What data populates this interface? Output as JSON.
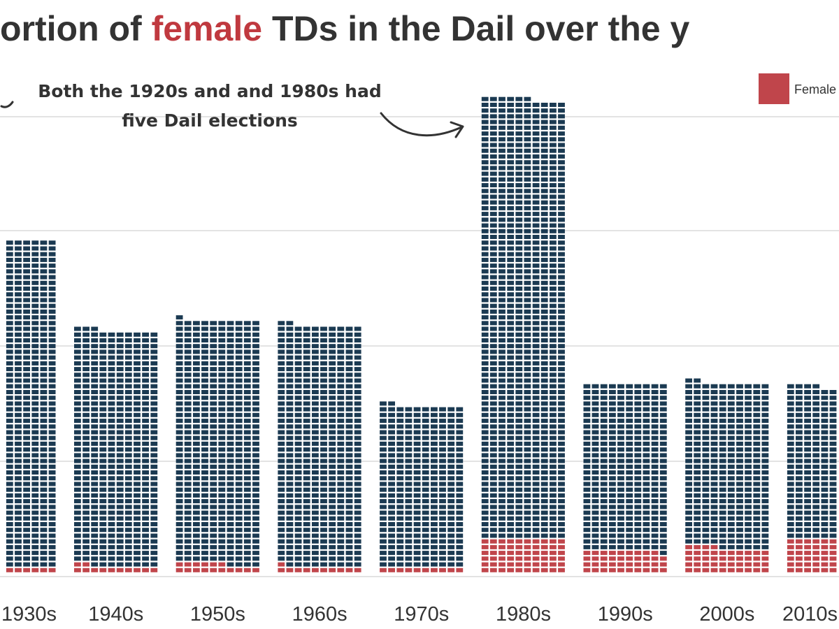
{
  "title": {
    "part1": "ortion of ",
    "highlight": "female",
    "part2": " TDs in the Dail over the y"
  },
  "annotation": {
    "line1": "Both the 1920s and and 1980s had",
    "line2": "five Dail elections"
  },
  "legend": {
    "label": "Female"
  },
  "colors": {
    "male": "#1b3a52",
    "female": "#c0454b",
    "gridline": "#e3e3e3",
    "title_highlight": "#c0393f"
  },
  "chart_data": {
    "type": "waffle",
    "unit": "one square per TD seat",
    "columns_per_bar": 10,
    "categories": [
      "1930s",
      "1940s",
      "1950s",
      "1960s",
      "1970s",
      "1980s",
      "1990s",
      "2000s",
      "2010s"
    ],
    "series": [
      {
        "name": "Female",
        "values": [
          10,
          12,
          16,
          11,
          10,
          60,
          39,
          44,
          60
        ]
      },
      {
        "values": [
          572,
          411,
          425,
          421,
          282,
          766,
          291,
          288,
          264
        ]
      }
    ],
    "totals": [
      582,
      423,
      441,
      432,
      292,
      826,
      330,
      332,
      324
    ],
    "grid": true,
    "legend_position": "top-right"
  }
}
